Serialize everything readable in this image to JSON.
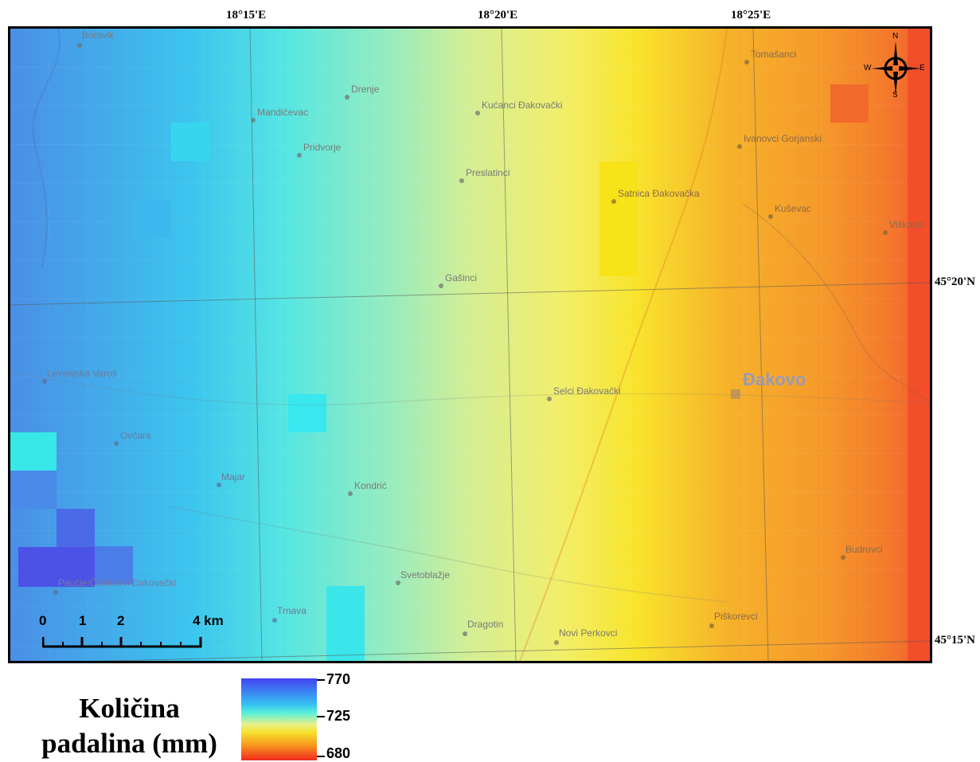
{
  "map": {
    "coordinates": {
      "top": [
        "18°15'E",
        "18°20'E",
        "18°25'E"
      ],
      "right": [
        "45°20'N",
        "45°15'N"
      ]
    },
    "places": [
      {
        "name": "Borovik"
      },
      {
        "name": "Drenje"
      },
      {
        "name": "Mandićevac"
      },
      {
        "name": "Kućanci Đakovački"
      },
      {
        "name": "Pridvorje"
      },
      {
        "name": "Preslatinci"
      },
      {
        "name": "Tomašanci"
      },
      {
        "name": "Ivanovci Gorjanski"
      },
      {
        "name": "Satnica Đakovačka"
      },
      {
        "name": "Kuševac"
      },
      {
        "name": "Viškovci"
      },
      {
        "name": "Gašinci"
      },
      {
        "name": "Levanjska Varoš"
      },
      {
        "name": "Selci Đakovački"
      },
      {
        "name": "Ovčara"
      },
      {
        "name": "Majar"
      },
      {
        "name": "Kondrić"
      },
      {
        "name": "Budrovci"
      },
      {
        "name": "Svetoblažje"
      },
      {
        "name": "Paučje/Čenkovci Đakovački"
      },
      {
        "name": "Trnava"
      },
      {
        "name": "Dragotin"
      },
      {
        "name": "Novi Perkovci"
      },
      {
        "name": "Piškorevci"
      }
    ],
    "city": "Đakovo",
    "north_arrow": {
      "n": "N",
      "s": "S",
      "e": "E",
      "w": "W"
    },
    "scale_bar": {
      "labels": [
        "0",
        "1",
        "2",
        "4 km"
      ]
    }
  },
  "legend": {
    "title_line1": "Količina",
    "title_line2": "padalina (mm)",
    "max": "770",
    "mid": "725",
    "min": "680"
  },
  "colors": {
    "ramp": [
      "#4242f2",
      "#36c2f2",
      "#58f0d8",
      "#e8f08a",
      "#f6e22c",
      "#f7941d",
      "#f12a1e"
    ]
  }
}
